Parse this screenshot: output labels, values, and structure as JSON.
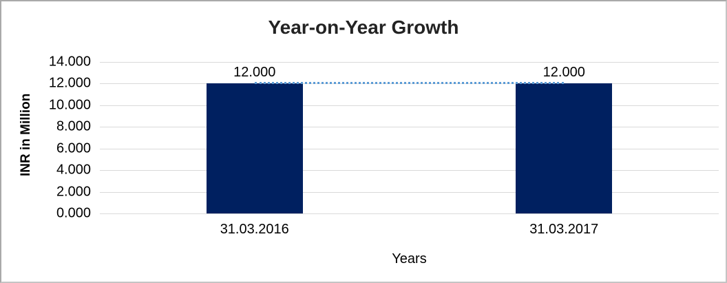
{
  "chart_data": {
    "type": "bar",
    "title": "Year-on-Year Growth",
    "xlabel": "Years",
    "ylabel": "INR in Million",
    "categories": [
      "31.03.2016",
      "31.03.2017"
    ],
    "values": [
      12,
      12
    ],
    "value_labels": [
      "12.000",
      "12.000"
    ],
    "ylim": [
      0,
      14
    ],
    "yticks": [
      {
        "value": 0,
        "label": "0.000"
      },
      {
        "value": 2,
        "label": "2.000"
      },
      {
        "value": 4,
        "label": "4.000"
      },
      {
        "value": 6,
        "label": "6.000"
      },
      {
        "value": 8,
        "label": "8.000"
      },
      {
        "value": 10,
        "label": "10.000"
      },
      {
        "value": 12,
        "label": "12.000"
      },
      {
        "value": 14,
        "label": "14.000"
      }
    ],
    "grid": true,
    "legend": "none",
    "trendline": {
      "style": "dotted",
      "values": [
        12,
        12
      ]
    },
    "colors": {
      "bar": "#002060",
      "trendline": "#5b9bd5",
      "gridline": "#d9d9d9",
      "title_text": "#232323",
      "text": "#000000"
    }
  }
}
